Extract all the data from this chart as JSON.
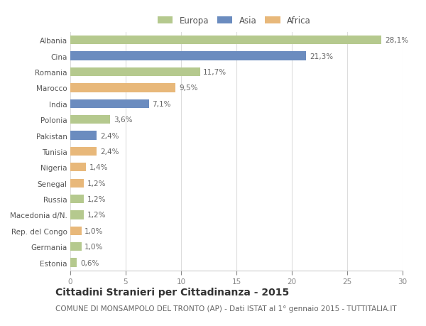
{
  "countries": [
    "Albania",
    "Cina",
    "Romania",
    "Marocco",
    "India",
    "Polonia",
    "Pakistan",
    "Tunisia",
    "Nigeria",
    "Senegal",
    "Russia",
    "Macedonia d/N.",
    "Rep. del Congo",
    "Germania",
    "Estonia"
  ],
  "values": [
    28.1,
    21.3,
    11.7,
    9.5,
    7.1,
    3.6,
    2.4,
    2.4,
    1.4,
    1.2,
    1.2,
    1.2,
    1.0,
    1.0,
    0.6
  ],
  "labels": [
    "28,1%",
    "21,3%",
    "11,7%",
    "9,5%",
    "7,1%",
    "3,6%",
    "2,4%",
    "2,4%",
    "1,4%",
    "1,2%",
    "1,2%",
    "1,2%",
    "1,0%",
    "1,0%",
    "0,6%"
  ],
  "continents": [
    "Europa",
    "Asia",
    "Europa",
    "Africa",
    "Asia",
    "Europa",
    "Asia",
    "Africa",
    "Africa",
    "Africa",
    "Europa",
    "Europa",
    "Africa",
    "Europa",
    "Europa"
  ],
  "colors": {
    "Europa": "#b5c98e",
    "Asia": "#6b8cbf",
    "Africa": "#e8b87a"
  },
  "xlim": [
    0,
    30
  ],
  "xticks": [
    0,
    5,
    10,
    15,
    20,
    25,
    30
  ],
  "title": "Cittadini Stranieri per Cittadinanza - 2015",
  "subtitle": "COMUNE DI MONSAMPOLO DEL TRONTO (AP) - Dati ISTAT al 1° gennaio 2015 - TUTTITALIA.IT",
  "background_color": "#ffffff",
  "grid_color": "#dddddd",
  "bar_height": 0.55,
  "title_fontsize": 10,
  "subtitle_fontsize": 7.5,
  "label_fontsize": 7.5,
  "tick_fontsize": 7.5,
  "legend_fontsize": 8.5
}
